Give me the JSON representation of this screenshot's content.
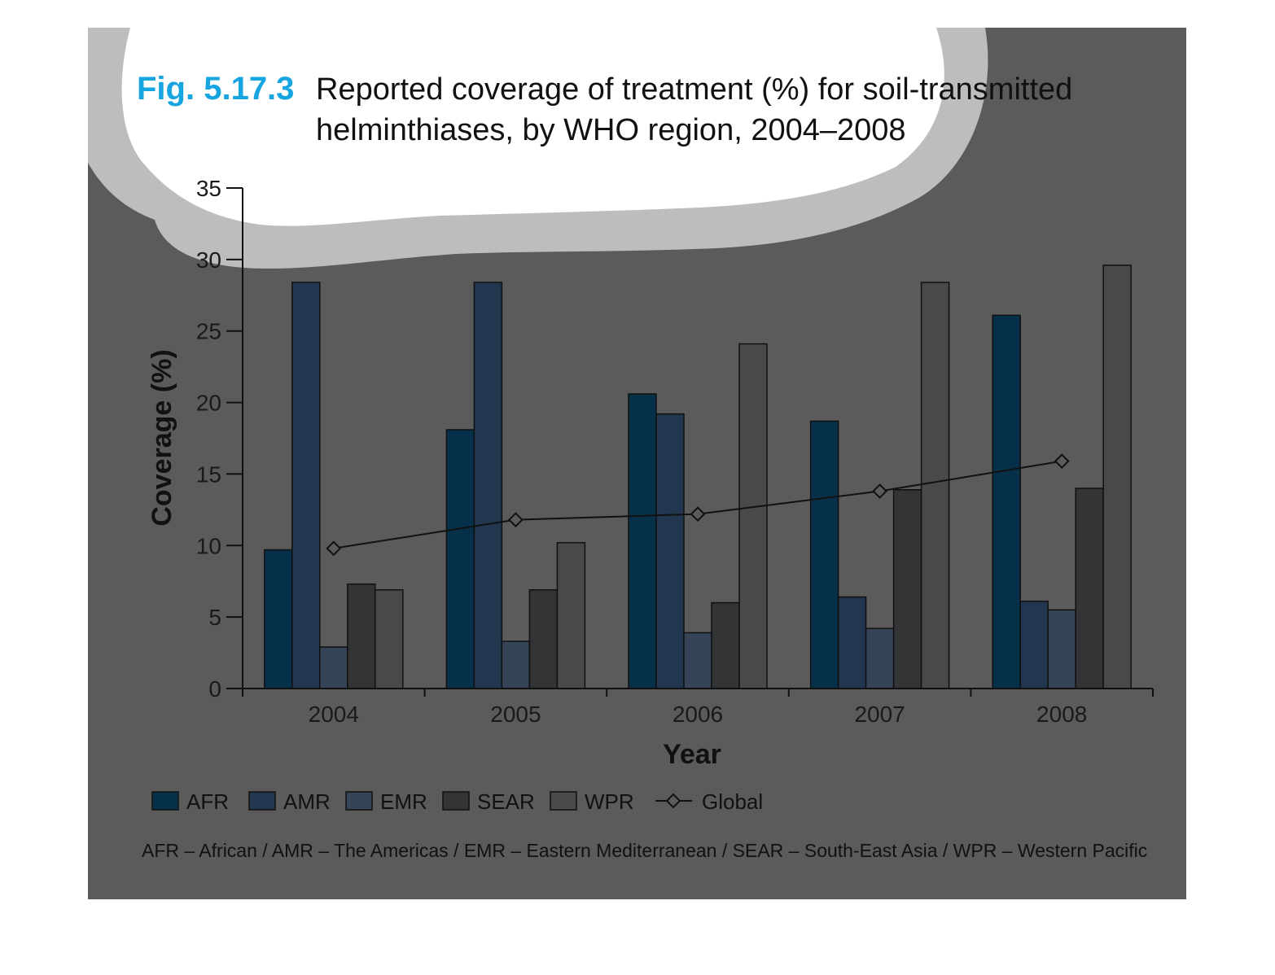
{
  "figure": {
    "number": "Fig. 5.17.3",
    "title_line1": "Reported coverage of treatment (%) for soil-transmitted",
    "title_line2": "helminthiases, by WHO region, 2004–2008",
    "footnote": "AFR – African / AMR – The Americas / EMR – Eastern Mediterranean / SEAR – South-East Asia / WPR – Western Pacific"
  },
  "colors": {
    "panel_bg": "#5b5b5b",
    "cloud": "#bdbdbd",
    "accent": "#16a5e0",
    "AFR": "#06304a",
    "AMR": "#22364f",
    "EMR": "#364458",
    "SEAR": "#333436",
    "WPR": "#48494b"
  },
  "chart_data": {
    "type": "bar",
    "categories": [
      "2004",
      "2005",
      "2006",
      "2007",
      "2008"
    ],
    "series": [
      {
        "name": "AFR",
        "values": [
          9.7,
          18.1,
          20.6,
          18.7,
          26.1
        ]
      },
      {
        "name": "AMR",
        "values": [
          28.4,
          28.4,
          19.2,
          6.4,
          6.1
        ]
      },
      {
        "name": "EMR",
        "values": [
          2.9,
          3.3,
          3.9,
          4.2,
          5.5
        ]
      },
      {
        "name": "SEAR",
        "values": [
          7.3,
          6.9,
          6.0,
          13.9,
          14.0
        ]
      },
      {
        "name": "WPR",
        "values": [
          6.9,
          10.2,
          24.1,
          28.4,
          29.6
        ]
      }
    ],
    "line_series": {
      "name": "Global",
      "type": "line",
      "marker": "diamond",
      "values": [
        9.8,
        11.8,
        12.2,
        13.8,
        15.9
      ]
    },
    "xlabel": "Year",
    "ylabel": "Coverage (%)",
    "ylim": [
      0,
      35
    ],
    "yticks": [
      "0",
      "5",
      "10",
      "15",
      "20",
      "25",
      "30",
      "35"
    ],
    "grid": false,
    "legend_position": "bottom-left"
  }
}
